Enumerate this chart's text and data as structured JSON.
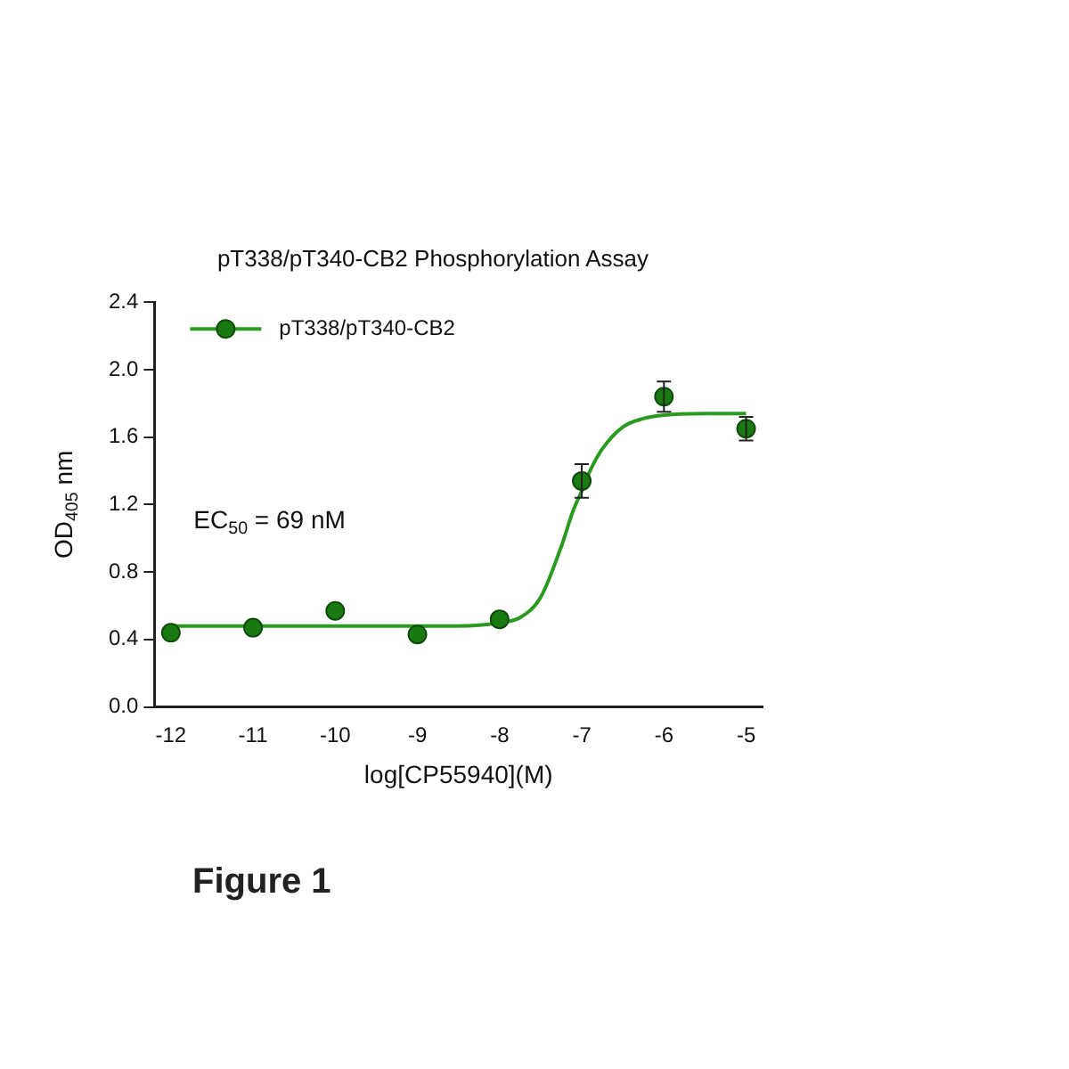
{
  "chart_data": {
    "type": "scatter",
    "title": "pT338/pT340-CB2 Phosphorylation Assay",
    "xlabel": "log[CP55940](M)",
    "ylabel": "OD$_{405}$ nm",
    "annotations": [
      "EC$_{50}$ = 69 nM",
      "Figure 1"
    ],
    "series": [
      {
        "name": "pT338/pT340-CB2",
        "type": "scatter",
        "color": "#1a7a12",
        "x": [
          -12,
          -11,
          -10,
          -9,
          -8,
          -7,
          -6,
          -5
        ],
        "values": [
          0.44,
          0.47,
          0.57,
          0.43,
          0.52,
          1.34,
          1.84,
          1.65
        ],
        "errors": [
          null,
          null,
          null,
          null,
          null,
          0.1,
          0.09,
          0.07
        ]
      },
      {
        "type": "line",
        "color": "#2a9a20",
        "marker": "none",
        "x": [
          -12,
          -11,
          -10,
          -9,
          -8.5,
          -8,
          -7.75,
          -7.5,
          -7.25,
          -7.1,
          -7,
          -6.9,
          -6.75,
          -6.5,
          -6.25,
          -6,
          -5.5,
          -5
        ],
        "values": [
          0.48,
          0.48,
          0.48,
          0.48,
          0.48,
          0.5,
          0.53,
          0.65,
          0.95,
          1.17,
          1.28,
          1.4,
          1.53,
          1.66,
          1.71,
          1.73,
          1.74,
          1.74
        ]
      }
    ],
    "marker": "circle",
    "legend": "top left",
    "grid": false,
    "xlim": [
      -12.2,
      -4.8
    ],
    "xticks": [
      -12,
      -11,
      -10,
      -9,
      -8,
      -7,
      -6,
      -5
    ],
    "ylim": [
      0,
      2.4
    ],
    "yticks": [
      {
        "value": 0,
        "label": "0.0"
      },
      {
        "value": 0.4,
        "label": "0.4"
      },
      {
        "value": 0.8,
        "label": "0.8"
      },
      {
        "value": 1.2,
        "label": "1.2"
      },
      {
        "value": 1.6,
        "label": "1.6"
      },
      {
        "value": 2,
        "label": "2.0"
      },
      {
        "value": 2.4,
        "label": "2.4"
      }
    ]
  }
}
